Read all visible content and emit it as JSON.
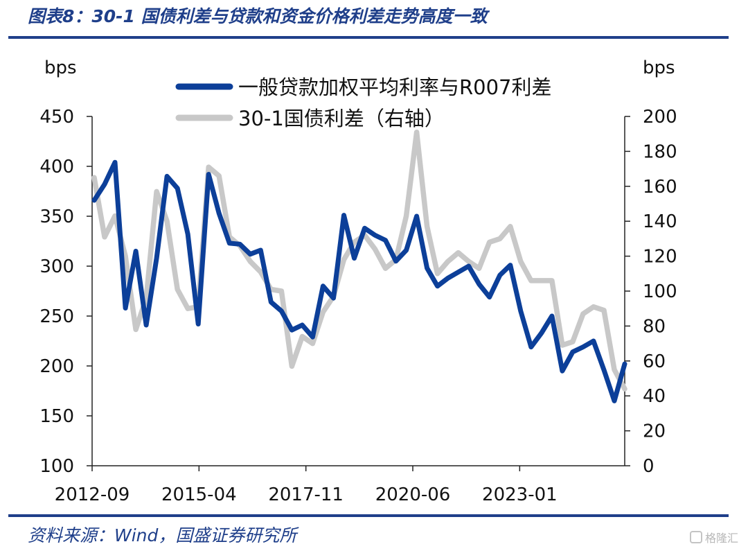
{
  "header": {
    "title": "图表8：30-1 国债利差与贷款和资金价格利差走势高度一致"
  },
  "footer": {
    "source": "资料来源：Wind，国盛证券研究所",
    "watermark": "格隆汇"
  },
  "chart_data": {
    "type": "line",
    "title": "图表8：30-1 国债利差与贷款和资金价格利差走势高度一致",
    "ylabel_left": "bps",
    "ylabel_right": "bps",
    "ylim_left": [
      100,
      450
    ],
    "ylim_right": [
      0,
      200
    ],
    "yticks_left": [
      100,
      150,
      200,
      250,
      300,
      350,
      400,
      450
    ],
    "yticks_right": [
      0,
      20,
      40,
      60,
      80,
      100,
      120,
      140,
      160,
      180,
      200
    ],
    "xticks": [
      "2012-09",
      "2015-04",
      "2017-11",
      "2020-06",
      "2023-01"
    ],
    "legend_position": "top-center",
    "colors": {
      "left": "#0c3f99",
      "right": "#c8c8c8"
    },
    "series": [
      {
        "name": "一般贷款加权平均利率与R007利差",
        "axis": "left",
        "color": "#0c3f99",
        "values": [
          366,
          382,
          404,
          258,
          315,
          241,
          308,
          390,
          378,
          332,
          242,
          392,
          353,
          323,
          322,
          312,
          316,
          264,
          255,
          236,
          241,
          229,
          280,
          268,
          351,
          308,
          338,
          331,
          326,
          305,
          316,
          350,
          298,
          280,
          288,
          294,
          300,
          282,
          269,
          291,
          301,
          255,
          219,
          233,
          250,
          195,
          214,
          219,
          225,
          196,
          165,
          202
        ]
      },
      {
        "name": "30-1国债利差（右轴）",
        "axis": "right",
        "color": "#c8c8c8",
        "values": [
          165,
          131,
          143,
          120,
          78,
          96,
          157,
          140,
          101,
          90,
          91,
          171,
          166,
          131,
          126,
          117,
          111,
          101,
          100,
          57,
          74,
          70,
          88,
          97,
          118,
          128,
          132,
          124,
          113,
          118,
          143,
          191,
          137,
          110,
          117,
          122,
          117,
          113,
          128,
          130,
          137,
          117,
          106,
          106,
          106,
          69,
          71,
          87,
          91,
          89,
          55,
          44
        ]
      }
    ]
  }
}
